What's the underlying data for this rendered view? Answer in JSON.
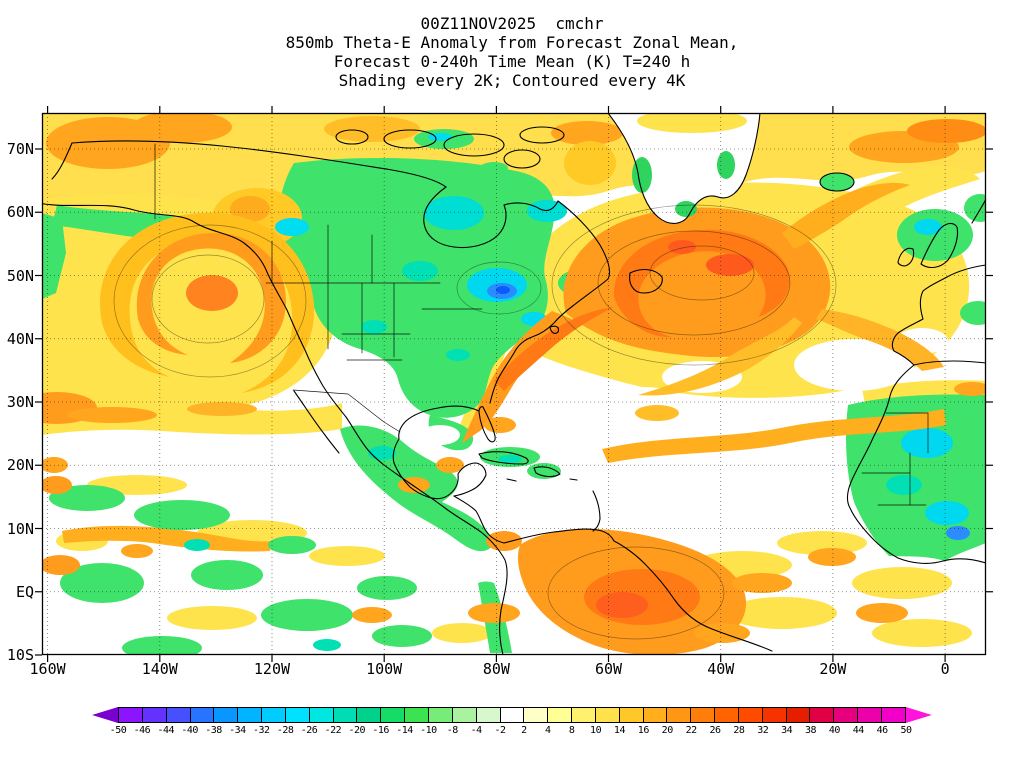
{
  "title": {
    "line1": "00Z11NOV2025  cmchr",
    "line2": "850mb Theta-E Anomaly from Forecast Zonal Mean,",
    "line3": "Forecast 0-240h Time Mean (K) T=240 h",
    "line4": "Shading every 2K; Contoured every 4K"
  },
  "axes": {
    "lat_labels": [
      "70N",
      "60N",
      "50N",
      "40N",
      "30N",
      "20N",
      "10N",
      "EQ",
      "10S"
    ],
    "lon_labels": [
      "160W",
      "140W",
      "120W",
      "100W",
      "80W",
      "60W",
      "40W",
      "20W",
      "0"
    ]
  },
  "colorbar": {
    "tick_labels": [
      "-50",
      "-46",
      "-44",
      "-40",
      "-38",
      "-34",
      "-32",
      "-28",
      "-26",
      "-22",
      "-20",
      "-16",
      "-14",
      "-10",
      "-8",
      "-4",
      "-2",
      "2",
      "4",
      "8",
      "10",
      "14",
      "16",
      "20",
      "22",
      "26",
      "28",
      "32",
      "34",
      "38",
      "40",
      "44",
      "46",
      "50"
    ],
    "colors": [
      "#7a00d0",
      "#8c14ff",
      "#6432ff",
      "#4650ff",
      "#2873ff",
      "#0a96ff",
      "#00b4ff",
      "#00ccff",
      "#00e1ff",
      "#00e6e1",
      "#00dcb4",
      "#00d28c",
      "#14dc64",
      "#3ce350",
      "#78ec78",
      "#aaf2a0",
      "#d7f7cd",
      "#ffffff",
      "#ffffc8",
      "#ffff96",
      "#fff06e",
      "#ffe14b",
      "#ffc828",
      "#ffaf1e",
      "#ff9614",
      "#ff7d0a",
      "#ff6400",
      "#ff4b00",
      "#f53200",
      "#e61e00",
      "#e10045",
      "#e6007d",
      "#eb00aa",
      "#f000c8",
      "#ff14dc"
    ]
  },
  "chart_data": {
    "type": "heatmap",
    "title": "850mb Theta-E Anomaly from Forecast Zonal Mean, Forecast 0-240h Time Mean (K) T=240 h",
    "subtitle": "Shading every 2K; Contoured every 4K",
    "run": "00Z11NOV2025",
    "model": "cmchr",
    "units": "K",
    "shading_interval_K": 2,
    "contour_interval_K": 4,
    "lat_range": [
      "10S",
      "75N"
    ],
    "lon_range": [
      "160W",
      "0"
    ],
    "colorbar_levels": [
      -50,
      -46,
      -44,
      -40,
      -38,
      -34,
      -32,
      -28,
      -26,
      -22,
      -20,
      -16,
      -14,
      -10,
      -8,
      -4,
      -2,
      2,
      4,
      8,
      10,
      14,
      16,
      20,
      22,
      26,
      28,
      32,
      34,
      38,
      40,
      44,
      46,
      50
    ],
    "features": [
      {
        "region": "Central North Atlantic near 45W 45-50N",
        "anomaly": "+16 to +30K maximum (orange/red core)"
      },
      {
        "region": "NE Pacific spiral near 145W 45-55N",
        "anomaly": "+10 to +20K (orange swirl in yellow field)"
      },
      {
        "region": "Arctic band 65-75N across map",
        "anomaly": "+4 to +14K (yellow/orange)"
      },
      {
        "region": "Great Lakes / NE United States",
        "anomaly": "-10 to -22K (cyan/blue cores)"
      },
      {
        "region": "Canada and central-eastern North America",
        "anomaly": "-4 to -12K (green)"
      },
      {
        "region": "Orange band from Florida/Bahamas NE into Atlantic high",
        "anomaly": "+10 to +24K"
      },
      {
        "region": "NW South America (Colombia/Venezuela/Guyana)",
        "anomaly": "+12 to +26K (orange)"
      },
      {
        "region": "West Africa interior",
        "anomaly": "-4 to -18K (green/cyan, local blue)"
      },
      {
        "region": "Subtropical Atlantic 22-32N",
        "anomaly": "-2 to +2K (white, near zero)"
      },
      {
        "region": "Tropical East Pacific",
        "anomaly": "mixed -6 to +12K speckled (green/yellow/orange)"
      }
    ]
  }
}
